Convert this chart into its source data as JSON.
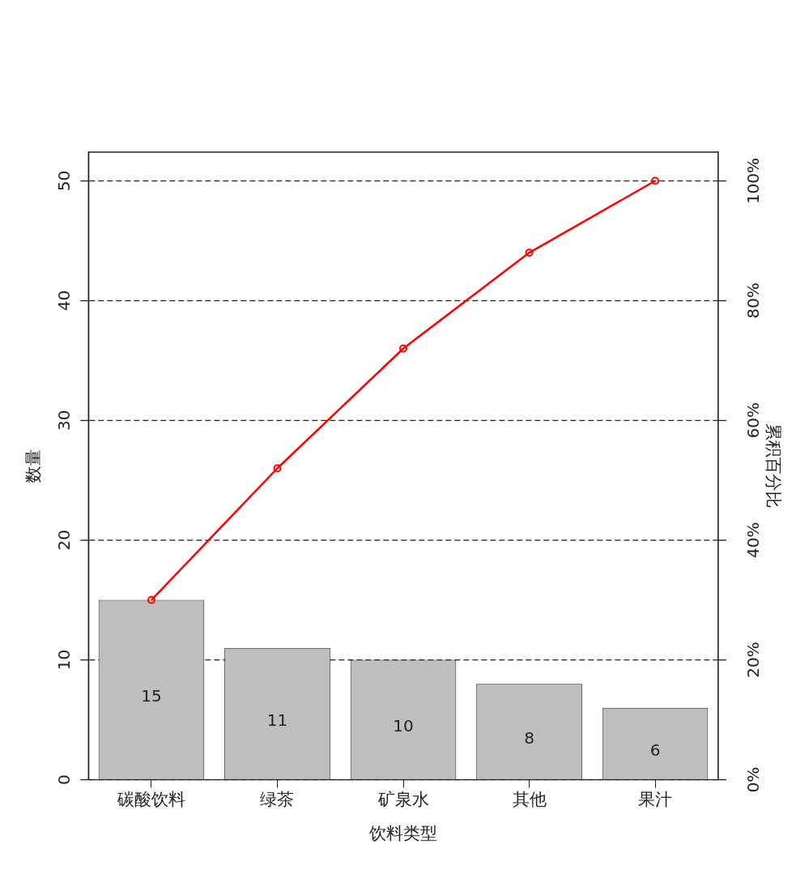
{
  "chart_data": {
    "type": "bar",
    "categories": [
      "碳酸饮料",
      "绿茶",
      "矿泉水",
      "其他",
      "果汁"
    ],
    "series": [
      {
        "color": "#bebebe",
        "values": [
          15,
          11,
          10,
          8,
          6
        ],
        "value_labels": [
          "15",
          "11",
          "10",
          "8",
          "6"
        ]
      },
      {
        "type": "line",
        "color": "#ff0000",
        "axis": "y2",
        "marker": "circle",
        "line_style": "solid",
        "values": [
          30,
          52,
          72,
          88,
          100
        ]
      }
    ],
    "xlabel": "饮料类型",
    "ylabel": "数量",
    "y2label": "累积百分比",
    "ylim": [
      0,
      52.4
    ],
    "yticks": [
      0,
      10,
      20,
      30,
      40,
      50
    ],
    "y2lim": [
      0,
      104.8
    ],
    "y2ticks": [
      {
        "value": 0,
        "label": "0%"
      },
      {
        "value": 20,
        "label": "20%"
      },
      {
        "value": 40,
        "label": "40%"
      },
      {
        "value": 60,
        "label": "60%"
      },
      {
        "value": 80,
        "label": "80%"
      },
      {
        "value": 100,
        "label": "100%"
      }
    ],
    "grid": "y",
    "legend": false
  }
}
